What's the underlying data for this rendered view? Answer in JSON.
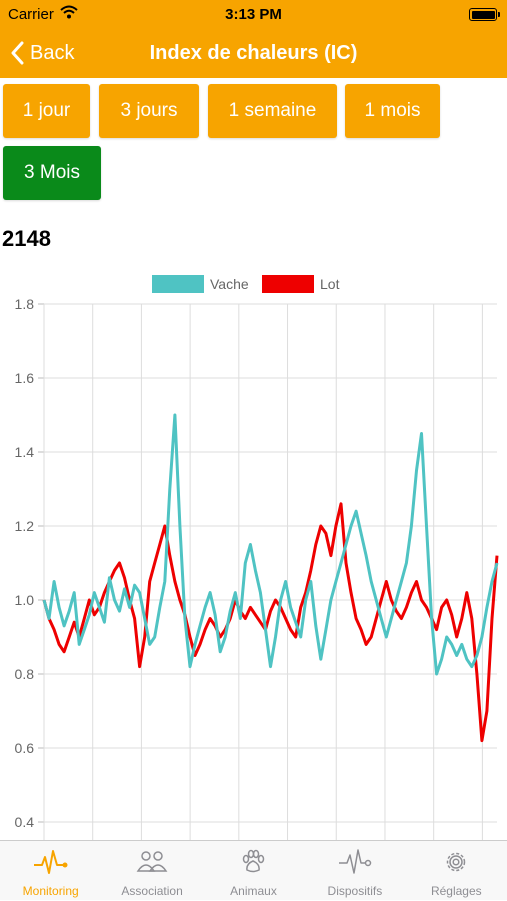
{
  "status": {
    "carrier": "Carrier",
    "time": "3:13 PM"
  },
  "nav": {
    "back_label": "Back",
    "title": "Index de chaleurs (IC)"
  },
  "ranges": [
    {
      "label": "1 jour",
      "active": false
    },
    {
      "label": "3 jours",
      "active": false
    },
    {
      "label": "1 semaine",
      "active": false
    },
    {
      "label": "1 mois",
      "active": false
    },
    {
      "label": "3 Mois",
      "active": true
    }
  ],
  "animal_id": "2148",
  "colors": {
    "accent": "#f7a400",
    "active_button": "#0a8a1a",
    "vache": "#4fc3c3",
    "lot": "#ee0000"
  },
  "chart_data": {
    "type": "line",
    "title": "",
    "xlabel": "",
    "ylabel": "",
    "ylim": [
      0.4,
      1.8
    ],
    "yticks": [
      "0.4",
      "0.6",
      "0.8",
      "1.0",
      "1.2",
      "1.4",
      "1.6",
      "1.8"
    ],
    "legend_position": "top",
    "grid": true,
    "x": [
      0,
      1,
      2,
      3,
      4,
      5,
      6,
      7,
      8,
      9,
      10,
      11,
      12,
      13,
      14,
      15,
      16,
      17,
      18,
      19,
      20,
      21,
      22,
      23,
      24,
      25,
      26,
      27,
      28,
      29,
      30,
      31,
      32,
      33,
      34,
      35,
      36,
      37,
      38,
      39,
      40,
      41,
      42,
      43,
      44,
      45,
      46,
      47,
      48,
      49,
      50,
      51,
      52,
      53,
      54,
      55,
      56,
      57,
      58,
      59,
      60,
      61,
      62,
      63,
      64,
      65,
      66,
      67,
      68,
      69,
      70,
      71,
      72,
      73,
      74,
      75,
      76,
      77,
      78,
      79,
      80,
      81,
      82,
      83,
      84,
      85,
      86,
      87,
      88,
      89,
      90
    ],
    "series": [
      {
        "name": "Vache",
        "color": "#4fc3c3",
        "values": [
          1.0,
          0.95,
          1.05,
          0.98,
          0.93,
          0.97,
          1.02,
          0.88,
          0.92,
          0.96,
          1.02,
          0.98,
          0.94,
          1.06,
          1.0,
          0.97,
          1.03,
          0.98,
          1.04,
          1.02,
          0.95,
          0.88,
          0.9,
          0.98,
          1.05,
          1.3,
          1.5,
          1.2,
          0.95,
          0.82,
          0.88,
          0.93,
          0.98,
          1.02,
          0.96,
          0.86,
          0.9,
          0.97,
          1.02,
          0.95,
          1.1,
          1.15,
          1.08,
          1.02,
          0.92,
          0.82,
          0.9,
          1.0,
          1.05,
          0.98,
          0.94,
          0.9,
          1.0,
          1.05,
          0.93,
          0.84,
          0.92,
          1.0,
          1.05,
          1.1,
          1.15,
          1.2,
          1.24,
          1.18,
          1.12,
          1.05,
          1.0,
          0.95,
          0.9,
          0.95,
          1.0,
          1.05,
          1.1,
          1.2,
          1.35,
          1.45,
          1.2,
          0.95,
          0.8,
          0.84,
          0.9,
          0.88,
          0.85,
          0.88,
          0.84,
          0.82,
          0.85,
          0.9,
          0.98,
          1.05,
          1.1
        ]
      },
      {
        "name": "Lot",
        "color": "#ee0000",
        "values": [
          1.0,
          0.95,
          0.92,
          0.88,
          0.86,
          0.9,
          0.94,
          0.9,
          0.95,
          1.0,
          0.96,
          0.98,
          1.02,
          1.05,
          1.08,
          1.1,
          1.06,
          1.0,
          0.95,
          0.82,
          0.9,
          1.05,
          1.1,
          1.15,
          1.2,
          1.12,
          1.05,
          1.0,
          0.96,
          0.9,
          0.85,
          0.88,
          0.92,
          0.95,
          0.93,
          0.9,
          0.92,
          0.95,
          1.0,
          0.97,
          0.95,
          0.98,
          0.96,
          0.94,
          0.92,
          0.97,
          1.0,
          0.98,
          0.95,
          0.92,
          0.9,
          0.98,
          1.02,
          1.08,
          1.15,
          1.2,
          1.18,
          1.12,
          1.2,
          1.26,
          1.1,
          1.02,
          0.95,
          0.92,
          0.88,
          0.9,
          0.95,
          1.0,
          1.05,
          1.0,
          0.97,
          0.95,
          0.98,
          1.02,
          1.05,
          1.0,
          0.98,
          0.95,
          0.92,
          0.98,
          1.0,
          0.96,
          0.9,
          0.95,
          1.02,
          0.95,
          0.8,
          0.62,
          0.7,
          0.95,
          1.12
        ]
      }
    ]
  },
  "tabs": [
    {
      "label": "Monitoring",
      "icon": "heartbeat-icon",
      "active": true
    },
    {
      "label": "Association",
      "icon": "group-icon",
      "active": false
    },
    {
      "label": "Animaux",
      "icon": "paw-icon",
      "active": false
    },
    {
      "label": "Dispositifs",
      "icon": "device-pulse-icon",
      "active": false
    },
    {
      "label": "Réglages",
      "icon": "gear-icon",
      "active": false
    }
  ]
}
